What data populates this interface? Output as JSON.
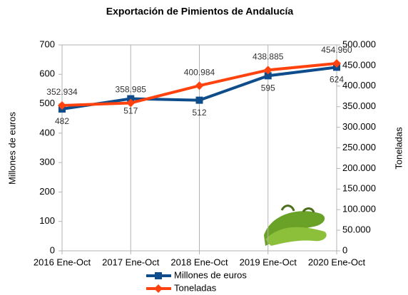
{
  "chart_data": {
    "type": "line",
    "title": "Exportación de Pimientos de Andalucía",
    "y_label": "Millones de euros",
    "y2_label": "Toneladas",
    "categories": [
      "2016 Ene-Oct",
      "2017 Ene-Oct",
      "2018 Ene-Oct",
      "2019 Ene-Oct",
      "2020 Ene-Oct"
    ],
    "series": [
      {
        "name": "Millones de euros",
        "color": "#0e4c8c",
        "marker": "square",
        "values": [
          482,
          517,
          512,
          595,
          624
        ]
      },
      {
        "name": "Toneladas",
        "color": "#ff420e",
        "marker": "diamond",
        "axis": "y2",
        "values": [
          352934,
          358985,
          400984,
          438885,
          454960
        ],
        "value_labels": [
          "352.934",
          "358.985",
          "400.984",
          "438.885",
          "454.960"
        ]
      }
    ],
    "ylim": [
      0,
      700
    ],
    "yticks": [
      0,
      100,
      200,
      300,
      400,
      500,
      600,
      700
    ],
    "y2lim": [
      0,
      500000
    ],
    "y2ticks": [
      0,
      {
        "value": 50000,
        "label": "50.000"
      },
      {
        "value": 100000,
        "label": "100.000"
      },
      {
        "value": 150000,
        "label": "150.000"
      },
      {
        "value": 200000,
        "label": "200.000"
      },
      {
        "value": 250000,
        "label": "250.000"
      },
      {
        "value": 300000,
        "label": "300.000"
      },
      {
        "value": 350000,
        "label": "350.000"
      },
      {
        "value": 400000,
        "label": "400.000"
      },
      {
        "value": 450000,
        "label": "450.000"
      },
      {
        "value": 500000,
        "label": "500.000"
      }
    ],
    "x_grid": true,
    "legend": "bottom"
  }
}
